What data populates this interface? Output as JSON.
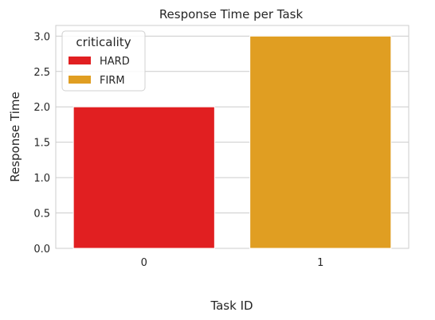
{
  "chart_data": {
    "type": "bar",
    "title": "Response Time per Task",
    "xlabel": "Task ID",
    "ylabel": "Response Time",
    "categories": [
      "0",
      "1"
    ],
    "values": [
      2.0,
      3.0
    ],
    "bar_groups": [
      "HARD",
      "FIRM"
    ],
    "ylim": [
      0,
      3.15
    ],
    "yticks": [
      "0.0",
      "0.5",
      "1.0",
      "1.5",
      "2.0",
      "2.5",
      "3.0"
    ],
    "grid": true,
    "legend": {
      "title": "criticality",
      "placement": "top-left",
      "entries": [
        {
          "label": "HARD",
          "color": "#e11f21"
        },
        {
          "label": "FIRM",
          "color": "#e09e22"
        }
      ]
    },
    "colors": {
      "HARD": "#e11f21",
      "FIRM": "#e09e22"
    }
  }
}
